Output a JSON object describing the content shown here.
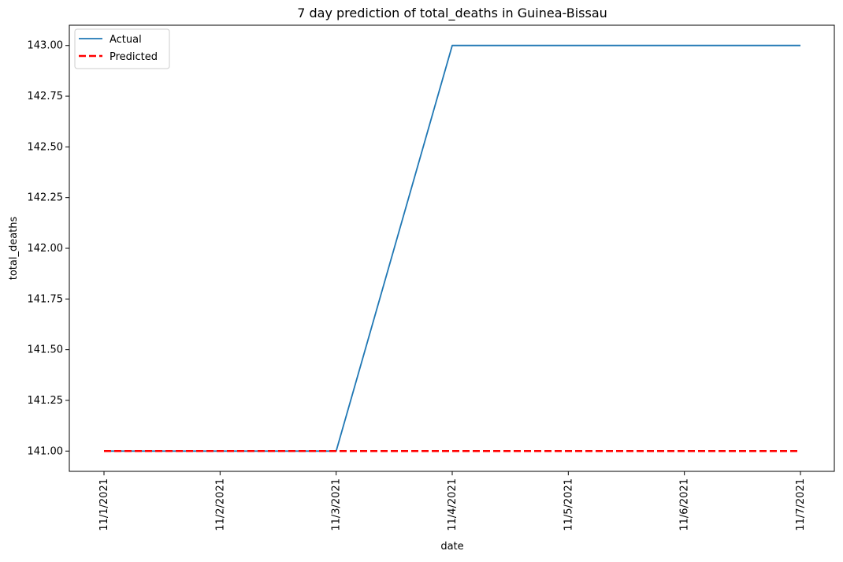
{
  "chart_data": {
    "type": "line",
    "title": "7 day prediction of total_deaths in Guinea-Bissau",
    "xlabel": "date",
    "ylabel": "total_deaths",
    "categories": [
      "11/1/2021",
      "11/2/2021",
      "11/3/2021",
      "11/4/2021",
      "11/5/2021",
      "11/6/2021",
      "11/7/2021"
    ],
    "yticks": [
      "141.00",
      "141.25",
      "141.50",
      "141.75",
      "142.00",
      "142.25",
      "142.50",
      "142.75",
      "143.00"
    ],
    "ylim": [
      140.9,
      143.1
    ],
    "grid": false,
    "legend_position": "top-left",
    "series": [
      {
        "name": "Actual",
        "values": [
          141,
          141,
          141,
          143,
          143,
          143,
          143
        ],
        "color": "#1f77b4",
        "style": "solid"
      },
      {
        "name": "Predicted",
        "values": [
          141,
          141,
          141,
          141,
          141,
          141,
          141
        ],
        "color": "#ff0000",
        "style": "dashed"
      }
    ]
  }
}
